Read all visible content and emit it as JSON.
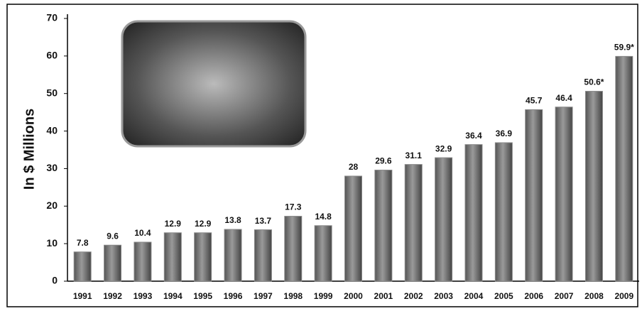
{
  "chart_data": {
    "type": "bar",
    "y_label": "In $ Millions",
    "categories": [
      "1991",
      "1992",
      "1993",
      "1994",
      "1995",
      "1996",
      "1997",
      "1998",
      "1999",
      "2000",
      "2001",
      "2002",
      "2003",
      "2004",
      "2005",
      "2006",
      "2007",
      "2008",
      "2009"
    ],
    "values": [
      7.8,
      9.6,
      10.4,
      12.9,
      12.9,
      13.8,
      13.7,
      17.3,
      14.8,
      28,
      29.6,
      31.1,
      32.9,
      36.4,
      36.9,
      45.7,
      46.4,
      50.6,
      59.9
    ],
    "value_labels": [
      "7.8",
      "9.6",
      "10.4",
      "12.9",
      "12.9",
      "13.8",
      "13.7",
      "17.3",
      "14.8",
      "28",
      "29.6",
      "31.1",
      "32.9",
      "36.4",
      "36.9",
      "45.7",
      "46.4",
      "50.6*",
      "59.9*"
    ],
    "color": "#8a8a8a",
    "ylim": [
      0,
      70
    ],
    "yticks": [
      0,
      10,
      20,
      30,
      40,
      50,
      60,
      70
    ],
    "grid": false
  }
}
